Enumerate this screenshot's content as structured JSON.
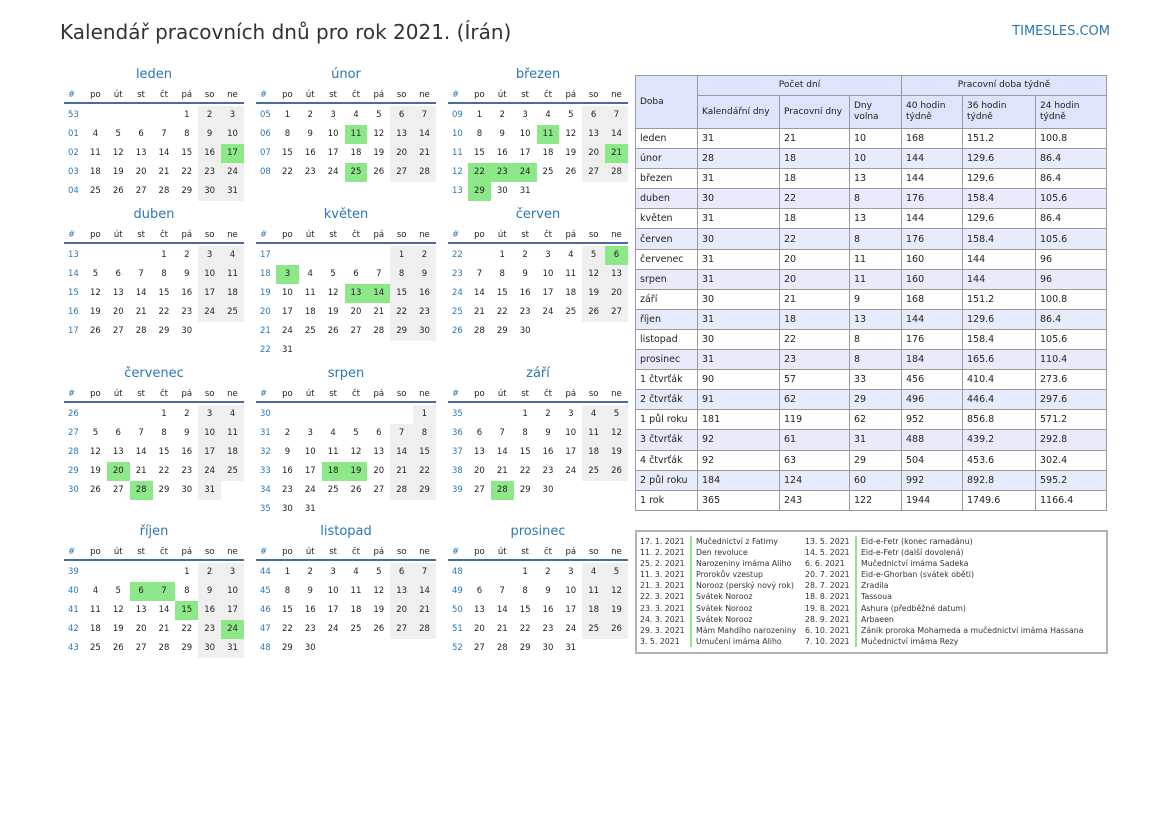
{
  "title": "Kalendář pracovních dnů pro rok 2021. (Írán)",
  "site": "TIMESLES.COM",
  "day_headers": [
    "#",
    "po",
    "út",
    "st",
    "čt",
    "pá",
    "so",
    "ne"
  ],
  "months": [
    {
      "name": "leden",
      "weeks": [
        {
          "w": "53",
          "d": [
            "",
            "",
            "",
            "",
            "1",
            "2",
            "3"
          ],
          "h": []
        },
        {
          "w": "01",
          "d": [
            "4",
            "5",
            "6",
            "7",
            "8",
            "9",
            "10"
          ],
          "h": []
        },
        {
          "w": "02",
          "d": [
            "11",
            "12",
            "13",
            "14",
            "15",
            "16",
            "17"
          ],
          "h": [
            6
          ]
        },
        {
          "w": "03",
          "d": [
            "18",
            "19",
            "20",
            "21",
            "22",
            "23",
            "24"
          ],
          "h": []
        },
        {
          "w": "04",
          "d": [
            "25",
            "26",
            "27",
            "28",
            "29",
            "30",
            "31"
          ],
          "h": []
        }
      ]
    },
    {
      "name": "únor",
      "weeks": [
        {
          "w": "05",
          "d": [
            "1",
            "2",
            "3",
            "4",
            "5",
            "6",
            "7"
          ],
          "h": []
        },
        {
          "w": "06",
          "d": [
            "8",
            "9",
            "10",
            "11",
            "12",
            "13",
            "14"
          ],
          "h": [
            3
          ]
        },
        {
          "w": "07",
          "d": [
            "15",
            "16",
            "17",
            "18",
            "19",
            "20",
            "21"
          ],
          "h": []
        },
        {
          "w": "08",
          "d": [
            "22",
            "23",
            "24",
            "25",
            "26",
            "27",
            "28"
          ],
          "h": [
            3
          ]
        }
      ]
    },
    {
      "name": "březen",
      "weeks": [
        {
          "w": "09",
          "d": [
            "1",
            "2",
            "3",
            "4",
            "5",
            "6",
            "7"
          ],
          "h": []
        },
        {
          "w": "10",
          "d": [
            "8",
            "9",
            "10",
            "11",
            "12",
            "13",
            "14"
          ],
          "h": [
            3
          ]
        },
        {
          "w": "11",
          "d": [
            "15",
            "16",
            "17",
            "18",
            "19",
            "20",
            "21"
          ],
          "h": [
            6
          ]
        },
        {
          "w": "12",
          "d": [
            "22",
            "23",
            "24",
            "25",
            "26",
            "27",
            "28"
          ],
          "h": [
            0,
            1,
            2
          ]
        },
        {
          "w": "13",
          "d": [
            "29",
            "30",
            "31",
            "",
            "",
            "",
            ""
          ],
          "h": [
            0
          ]
        }
      ]
    },
    {
      "name": "duben",
      "weeks": [
        {
          "w": "13",
          "d": [
            "",
            "",
            "",
            "1",
            "2",
            "3",
            "4"
          ],
          "h": []
        },
        {
          "w": "14",
          "d": [
            "5",
            "6",
            "7",
            "8",
            "9",
            "10",
            "11"
          ],
          "h": []
        },
        {
          "w": "15",
          "d": [
            "12",
            "13",
            "14",
            "15",
            "16",
            "17",
            "18"
          ],
          "h": []
        },
        {
          "w": "16",
          "d": [
            "19",
            "20",
            "21",
            "22",
            "23",
            "24",
            "25"
          ],
          "h": []
        },
        {
          "w": "17",
          "d": [
            "26",
            "27",
            "28",
            "29",
            "30",
            "",
            ""
          ],
          "h": []
        }
      ]
    },
    {
      "name": "květen",
      "weeks": [
        {
          "w": "17",
          "d": [
            "",
            "",
            "",
            "",
            "",
            "1",
            "2"
          ],
          "h": []
        },
        {
          "w": "18",
          "d": [
            "3",
            "4",
            "5",
            "6",
            "7",
            "8",
            "9"
          ],
          "h": [
            0
          ]
        },
        {
          "w": "19",
          "d": [
            "10",
            "11",
            "12",
            "13",
            "14",
            "15",
            "16"
          ],
          "h": [
            3,
            4
          ]
        },
        {
          "w": "20",
          "d": [
            "17",
            "18",
            "19",
            "20",
            "21",
            "22",
            "23"
          ],
          "h": []
        },
        {
          "w": "21",
          "d": [
            "24",
            "25",
            "26",
            "27",
            "28",
            "29",
            "30"
          ],
          "h": []
        },
        {
          "w": "22",
          "d": [
            "31",
            "",
            "",
            "",
            "",
            "",
            ""
          ],
          "h": []
        }
      ]
    },
    {
      "name": "červen",
      "weeks": [
        {
          "w": "22",
          "d": [
            "",
            "1",
            "2",
            "3",
            "4",
            "5",
            "6"
          ],
          "h": [
            6
          ]
        },
        {
          "w": "23",
          "d": [
            "7",
            "8",
            "9",
            "10",
            "11",
            "12",
            "13"
          ],
          "h": []
        },
        {
          "w": "24",
          "d": [
            "14",
            "15",
            "16",
            "17",
            "18",
            "19",
            "20"
          ],
          "h": []
        },
        {
          "w": "25",
          "d": [
            "21",
            "22",
            "23",
            "24",
            "25",
            "26",
            "27"
          ],
          "h": []
        },
        {
          "w": "26",
          "d": [
            "28",
            "29",
            "30",
            "",
            "",
            "",
            ""
          ],
          "h": []
        }
      ]
    },
    {
      "name": "červenec",
      "weeks": [
        {
          "w": "26",
          "d": [
            "",
            "",
            "",
            "1",
            "2",
            "3",
            "4"
          ],
          "h": []
        },
        {
          "w": "27",
          "d": [
            "5",
            "6",
            "7",
            "8",
            "9",
            "10",
            "11"
          ],
          "h": []
        },
        {
          "w": "28",
          "d": [
            "12",
            "13",
            "14",
            "15",
            "16",
            "17",
            "18"
          ],
          "h": []
        },
        {
          "w": "29",
          "d": [
            "19",
            "20",
            "21",
            "22",
            "23",
            "24",
            "25"
          ],
          "h": [
            1
          ]
        },
        {
          "w": "30",
          "d": [
            "26",
            "27",
            "28",
            "29",
            "30",
            "31",
            ""
          ],
          "h": [
            2
          ]
        }
      ]
    },
    {
      "name": "srpen",
      "weeks": [
        {
          "w": "30",
          "d": [
            "",
            "",
            "",
            "",
            "",
            "",
            "1"
          ],
          "h": []
        },
        {
          "w": "31",
          "d": [
            "2",
            "3",
            "4",
            "5",
            "6",
            "7",
            "8"
          ],
          "h": []
        },
        {
          "w": "32",
          "d": [
            "9",
            "10",
            "11",
            "12",
            "13",
            "14",
            "15"
          ],
          "h": []
        },
        {
          "w": "33",
          "d": [
            "16",
            "17",
            "18",
            "19",
            "20",
            "21",
            "22"
          ],
          "h": [
            2,
            3
          ]
        },
        {
          "w": "34",
          "d": [
            "23",
            "24",
            "25",
            "26",
            "27",
            "28",
            "29"
          ],
          "h": []
        },
        {
          "w": "35",
          "d": [
            "30",
            "31",
            "",
            "",
            "",
            "",
            ""
          ],
          "h": []
        }
      ]
    },
    {
      "name": "září",
      "weeks": [
        {
          "w": "35",
          "d": [
            "",
            "",
            "1",
            "2",
            "3",
            "4",
            "5"
          ],
          "h": []
        },
        {
          "w": "36",
          "d": [
            "6",
            "7",
            "8",
            "9",
            "10",
            "11",
            "12"
          ],
          "h": []
        },
        {
          "w": "37",
          "d": [
            "13",
            "14",
            "15",
            "16",
            "17",
            "18",
            "19"
          ],
          "h": []
        },
        {
          "w": "38",
          "d": [
            "20",
            "21",
            "22",
            "23",
            "24",
            "25",
            "26"
          ],
          "h": []
        },
        {
          "w": "39",
          "d": [
            "27",
            "28",
            "29",
            "30",
            "",
            "",
            ""
          ],
          "h": [
            1
          ]
        }
      ]
    },
    {
      "name": "říjen",
      "weeks": [
        {
          "w": "39",
          "d": [
            "",
            "",
            "",
            "",
            "1",
            "2",
            "3"
          ],
          "h": []
        },
        {
          "w": "40",
          "d": [
            "4",
            "5",
            "6",
            "7",
            "8",
            "9",
            "10"
          ],
          "h": [
            2,
            3
          ]
        },
        {
          "w": "41",
          "d": [
            "11",
            "12",
            "13",
            "14",
            "15",
            "16",
            "17"
          ],
          "h": [
            4
          ]
        },
        {
          "w": "42",
          "d": [
            "18",
            "19",
            "20",
            "21",
            "22",
            "23",
            "24"
          ],
          "h": [
            6
          ]
        },
        {
          "w": "43",
          "d": [
            "25",
            "26",
            "27",
            "28",
            "29",
            "30",
            "31"
          ],
          "h": []
        }
      ]
    },
    {
      "name": "listopad",
      "weeks": [
        {
          "w": "44",
          "d": [
            "1",
            "2",
            "3",
            "4",
            "5",
            "6",
            "7"
          ],
          "h": []
        },
        {
          "w": "45",
          "d": [
            "8",
            "9",
            "10",
            "11",
            "12",
            "13",
            "14"
          ],
          "h": []
        },
        {
          "w": "46",
          "d": [
            "15",
            "16",
            "17",
            "18",
            "19",
            "20",
            "21"
          ],
          "h": []
        },
        {
          "w": "47",
          "d": [
            "22",
            "23",
            "24",
            "25",
            "26",
            "27",
            "28"
          ],
          "h": []
        },
        {
          "w": "48",
          "d": [
            "29",
            "30",
            "",
            "",
            "",
            "",
            ""
          ],
          "h": []
        }
      ]
    },
    {
      "name": "prosinec",
      "weeks": [
        {
          "w": "48",
          "d": [
            "",
            "",
            "1",
            "2",
            "3",
            "4",
            "5"
          ],
          "h": []
        },
        {
          "w": "49",
          "d": [
            "6",
            "7",
            "8",
            "9",
            "10",
            "11",
            "12"
          ],
          "h": []
        },
        {
          "w": "50",
          "d": [
            "13",
            "14",
            "15",
            "16",
            "17",
            "18",
            "19"
          ],
          "h": []
        },
        {
          "w": "51",
          "d": [
            "20",
            "21",
            "22",
            "23",
            "24",
            "25",
            "26"
          ],
          "h": []
        },
        {
          "w": "52",
          "d": [
            "27",
            "28",
            "29",
            "30",
            "31",
            "",
            ""
          ],
          "h": []
        }
      ]
    }
  ],
  "summary": {
    "period_header": "Doba",
    "group1": "Počet dní",
    "group2": "Pracovní doba týdně",
    "cols": [
      "Kalendářní dny",
      "Pracovní dny",
      "Dny volna",
      "40 hodin týdně",
      "36 hodin týdně",
      "24 hodin týdně"
    ],
    "rows": [
      [
        "leden",
        "31",
        "21",
        "10",
        "168",
        "151.2",
        "100.8"
      ],
      [
        "únor",
        "28",
        "18",
        "10",
        "144",
        "129.6",
        "86.4"
      ],
      [
        "březen",
        "31",
        "18",
        "13",
        "144",
        "129.6",
        "86.4"
      ],
      [
        "duben",
        "30",
        "22",
        "8",
        "176",
        "158.4",
        "105.6"
      ],
      [
        "květen",
        "31",
        "18",
        "13",
        "144",
        "129.6",
        "86.4"
      ],
      [
        "červen",
        "30",
        "22",
        "8",
        "176",
        "158.4",
        "105.6"
      ],
      [
        "červenec",
        "31",
        "20",
        "11",
        "160",
        "144",
        "96"
      ],
      [
        "srpen",
        "31",
        "20",
        "11",
        "160",
        "144",
        "96"
      ],
      [
        "září",
        "30",
        "21",
        "9",
        "168",
        "151.2",
        "100.8"
      ],
      [
        "říjen",
        "31",
        "18",
        "13",
        "144",
        "129.6",
        "86.4"
      ],
      [
        "listopad",
        "30",
        "22",
        "8",
        "176",
        "158.4",
        "105.6"
      ],
      [
        "prosinec",
        "31",
        "23",
        "8",
        "184",
        "165.6",
        "110.4"
      ],
      [
        "1 čtvrťák",
        "90",
        "57",
        "33",
        "456",
        "410.4",
        "273.6"
      ],
      [
        "2 čtvrťák",
        "91",
        "62",
        "29",
        "496",
        "446.4",
        "297.6"
      ],
      [
        "1 půl roku",
        "181",
        "119",
        "62",
        "952",
        "856.8",
        "571.2"
      ],
      [
        "3 čtvrťák",
        "92",
        "61",
        "31",
        "488",
        "439.2",
        "292.8"
      ],
      [
        "4 čtvrťák",
        "92",
        "63",
        "29",
        "504",
        "453.6",
        "302.4"
      ],
      [
        "2 půl roku",
        "184",
        "124",
        "60",
        "992",
        "892.8",
        "595.2"
      ],
      [
        "1 rok",
        "365",
        "243",
        "122",
        "1944",
        "1749.6",
        "1166.4"
      ]
    ]
  },
  "holidays": {
    "left": [
      [
        "17. 1. 2021",
        "Mučednictví z Fatimy"
      ],
      [
        "11. 2. 2021",
        "Den revoluce"
      ],
      [
        "25. 2. 2021",
        "Narozeniny imáma Aliho"
      ],
      [
        "11. 3. 2021",
        "Prorokův vzestup"
      ],
      [
        "21. 3. 2021",
        "Norooz (perský nový rok)"
      ],
      [
        "22. 3. 2021",
        "Svátek Norooz"
      ],
      [
        "23. 3. 2021",
        "Svátek Norooz"
      ],
      [
        "24. 3. 2021",
        "Svátek Norooz"
      ],
      [
        "29. 3. 2021",
        "Mám Mahdího narozeniny"
      ],
      [
        "3. 5. 2021",
        "Umučení imáma Aliho"
      ]
    ],
    "right": [
      [
        "13. 5. 2021",
        "Eid-e-Fetr (konec ramadánu)"
      ],
      [
        "14. 5. 2021",
        "Eid-e-Fetr (další dovolená)"
      ],
      [
        "6. 6. 2021",
        "Mučednictví imáma Sadeka"
      ],
      [
        "20. 7. 2021",
        "Eid-e-Ghorban (svátek oběti)"
      ],
      [
        "28. 7. 2021",
        "Zradila"
      ],
      [
        "18. 8. 2021",
        "Tassoua"
      ],
      [
        "19. 8. 2021",
        "Ashura (předběžné datum)"
      ],
      [
        "28. 9. 2021",
        "Arbaeen"
      ],
      [
        "6. 10. 2021",
        "Zánik proroka Mohameda a mučednictví imáma Hassana"
      ],
      [
        "7. 10. 2021",
        "Mučednictví imáma Rezy"
      ]
    ]
  }
}
